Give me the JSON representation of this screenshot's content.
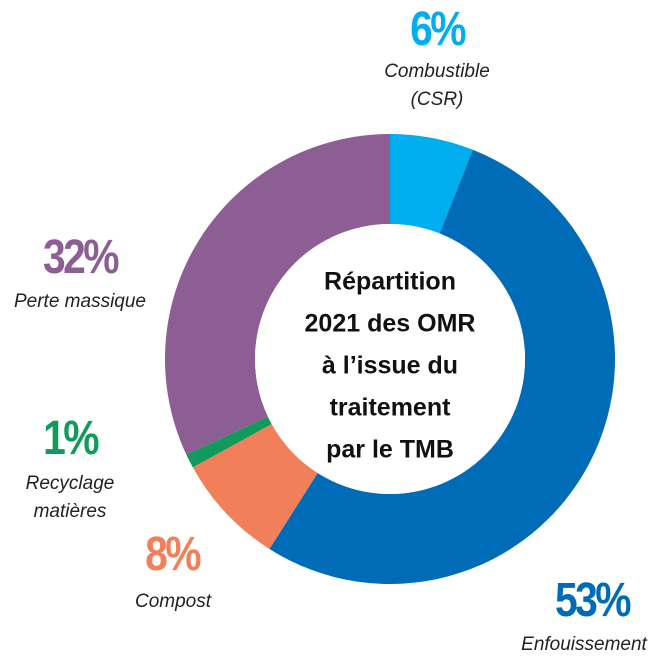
{
  "chart_data": {
    "type": "donut",
    "title": [
      "Répartition",
      "2021 des OMR",
      "à l’issue du",
      "traitement",
      "par le TMB"
    ],
    "categories": [
      "Combustible (CSR)",
      "Enfouissement",
      "Compost",
      "Recyclage matières",
      "Perte massique"
    ],
    "values": [
      6,
      53,
      8,
      1,
      32
    ],
    "value_labels": [
      "6%",
      "53%",
      "8%",
      "1%",
      "32%"
    ],
    "colors": [
      "#00aeef",
      "#006cb7",
      "#f07f5a",
      "#109a5c",
      "#8c5e93"
    ]
  }
}
